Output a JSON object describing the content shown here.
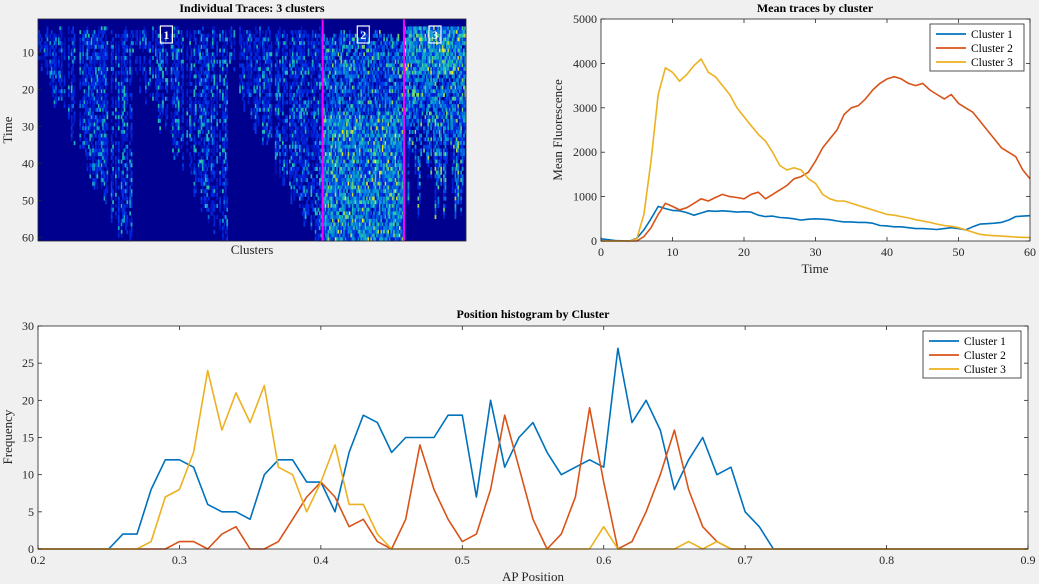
{
  "chart_data": [
    {
      "type": "heatmap",
      "title": "Individual Traces: 3 clusters",
      "xlabel": "Clusters",
      "ylabel": "Time",
      "ylim": [
        1,
        61
      ],
      "yticks": [
        10,
        20,
        30,
        40,
        50,
        60
      ],
      "cluster_labels": [
        "1",
        "2",
        "3"
      ],
      "cluster_boundaries": [
        0.665,
        0.855
      ],
      "colormap": "parula",
      "boundary_color": "#ff00ff"
    },
    {
      "type": "line",
      "title": "Mean traces by cluster",
      "xlabel": "Time",
      "ylabel": "Mean Fluorescence",
      "xlim": [
        0,
        60
      ],
      "ylim": [
        0,
        5000
      ],
      "xticks": [
        0,
        10,
        20,
        30,
        40,
        50,
        60
      ],
      "yticks": [
        0,
        1000,
        2000,
        3000,
        4000,
        5000
      ],
      "legend": "top-right",
      "x": [
        0,
        1,
        2,
        3,
        4,
        5,
        6,
        7,
        8,
        9,
        10,
        11,
        12,
        13,
        14,
        15,
        16,
        17,
        18,
        19,
        20,
        21,
        22,
        23,
        24,
        25,
        26,
        27,
        28,
        29,
        30,
        31,
        32,
        33,
        34,
        35,
        36,
        37,
        38,
        39,
        40,
        41,
        42,
        43,
        44,
        45,
        46,
        47,
        48,
        49,
        50,
        51,
        52,
        53,
        54,
        55,
        56,
        57,
        58,
        59,
        60
      ],
      "series": [
        {
          "name": "Cluster 1",
          "color": "#0072BD",
          "values": [
            50,
            30,
            10,
            5,
            0,
            60,
            250,
            500,
            780,
            730,
            690,
            680,
            640,
            580,
            630,
            680,
            670,
            680,
            670,
            650,
            660,
            650,
            580,
            550,
            560,
            530,
            520,
            500,
            470,
            490,
            500,
            490,
            480,
            450,
            430,
            430,
            420,
            420,
            400,
            350,
            340,
            320,
            320,
            300,
            280,
            280,
            270,
            260,
            280,
            300,
            280,
            250,
            320,
            380,
            390,
            400,
            420,
            470,
            550,
            560,
            570
          ]
        },
        {
          "name": "Cluster 2",
          "color": "#D95319",
          "values": [
            0,
            0,
            0,
            0,
            0,
            0,
            100,
            300,
            600,
            850,
            780,
            700,
            750,
            850,
            950,
            900,
            980,
            1050,
            1000,
            980,
            950,
            1050,
            1100,
            950,
            1050,
            1150,
            1250,
            1400,
            1450,
            1550,
            1800,
            2100,
            2300,
            2500,
            2850,
            3000,
            3050,
            3200,
            3400,
            3550,
            3650,
            3700,
            3650,
            3550,
            3500,
            3550,
            3400,
            3300,
            3200,
            3300,
            3100,
            3000,
            2900,
            2700,
            2500,
            2300,
            2100,
            2000,
            1900,
            1600,
            1400
          ]
        },
        {
          "name": "Cluster 3",
          "color": "#EDB120",
          "values": [
            0,
            0,
            0,
            0,
            0,
            50,
            600,
            1800,
            3300,
            3900,
            3800,
            3600,
            3750,
            3950,
            4100,
            3800,
            3700,
            3500,
            3300,
            3000,
            2800,
            2600,
            2400,
            2250,
            2000,
            1700,
            1600,
            1650,
            1600,
            1400,
            1300,
            1050,
            950,
            900,
            900,
            850,
            800,
            750,
            700,
            650,
            600,
            580,
            550,
            520,
            480,
            450,
            420,
            380,
            350,
            330,
            300,
            250,
            200,
            150,
            130,
            120,
            110,
            100,
            90,
            80,
            80
          ]
        }
      ]
    },
    {
      "type": "line",
      "title": "Position histogram by Cluster",
      "xlabel": "AP Position",
      "ylabel": "Frequency",
      "xlim": [
        0.2,
        0.9
      ],
      "ylim": [
        0,
        30
      ],
      "xticks": [
        0.2,
        0.3,
        0.4,
        0.5,
        0.6,
        0.7,
        0.8,
        0.9
      ],
      "yticks": [
        0,
        5,
        10,
        15,
        20,
        25,
        30
      ],
      "legend": "top-right",
      "x": [
        0.2,
        0.21,
        0.22,
        0.23,
        0.24,
        0.25,
        0.26,
        0.27,
        0.28,
        0.29,
        0.3,
        0.31,
        0.32,
        0.33,
        0.34,
        0.35,
        0.36,
        0.37,
        0.38,
        0.39,
        0.4,
        0.41,
        0.42,
        0.43,
        0.44,
        0.45,
        0.46,
        0.47,
        0.48,
        0.49,
        0.5,
        0.51,
        0.52,
        0.53,
        0.54,
        0.55,
        0.56,
        0.57,
        0.58,
        0.59,
        0.6,
        0.61,
        0.62,
        0.63,
        0.64,
        0.65,
        0.66,
        0.67,
        0.68,
        0.69,
        0.7,
        0.71,
        0.72,
        0.73,
        0.74,
        0.75,
        0.76,
        0.77,
        0.78,
        0.79,
        0.8,
        0.81,
        0.82,
        0.83,
        0.84,
        0.85,
        0.86,
        0.87,
        0.88,
        0.89,
        0.9
      ],
      "series": [
        {
          "name": "Cluster 1",
          "color": "#0072BD",
          "values": [
            0,
            0,
            0,
            0,
            0,
            0,
            2,
            2,
            8,
            12,
            12,
            11,
            6,
            5,
            5,
            4,
            10,
            12,
            12,
            9,
            9,
            5,
            13,
            18,
            17,
            13,
            15,
            15,
            15,
            18,
            18,
            7,
            20,
            11,
            15,
            17,
            13,
            10,
            11,
            12,
            11,
            27,
            17,
            20,
            16,
            8,
            12,
            15,
            10,
            11,
            5,
            3,
            0,
            0,
            0,
            0,
            0,
            0,
            0,
            0,
            0,
            0,
            0,
            0,
            0,
            0,
            0,
            0,
            0,
            0,
            0
          ]
        },
        {
          "name": "Cluster 2",
          "color": "#D95319",
          "values": [
            0,
            0,
            0,
            0,
            0,
            0,
            0,
            0,
            0,
            0,
            1,
            1,
            0,
            2,
            3,
            0,
            0,
            1,
            4,
            7,
            9,
            7,
            3,
            4,
            1,
            0,
            4,
            14,
            8,
            4,
            1,
            2,
            8,
            18,
            11,
            4,
            0,
            2,
            7,
            19,
            9,
            0,
            1,
            5,
            10,
            16,
            8,
            3,
            1,
            0,
            0,
            0,
            0,
            0,
            0,
            0,
            0,
            0,
            0,
            0,
            0,
            0,
            0,
            0,
            0,
            0,
            0,
            0,
            0,
            0,
            0
          ]
        },
        {
          "name": "Cluster 3",
          "color": "#EDB120",
          "values": [
            0,
            0,
            0,
            0,
            0,
            0,
            0,
            0,
            1,
            7,
            8,
            13,
            24,
            16,
            21,
            17,
            22,
            11,
            10,
            5,
            9,
            14,
            6,
            6,
            2,
            0,
            0,
            0,
            0,
            0,
            0,
            0,
            0,
            0,
            0,
            0,
            0,
            0,
            0,
            0,
            3,
            0,
            0,
            0,
            0,
            0,
            1,
            0,
            1,
            0,
            0,
            0,
            0,
            0,
            0,
            0,
            0,
            0,
            0,
            0,
            0,
            0,
            0,
            0,
            0,
            0,
            0,
            0,
            0,
            0,
            0
          ]
        }
      ]
    }
  ]
}
